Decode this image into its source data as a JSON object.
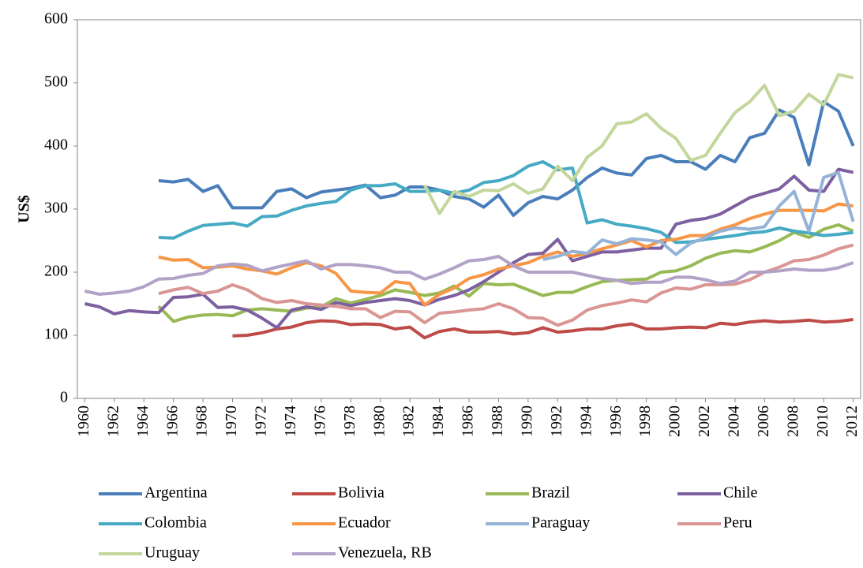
{
  "chart_data": {
    "type": "line",
    "ylabel": "US$",
    "x": [
      1960,
      1961,
      1962,
      1963,
      1964,
      1965,
      1966,
      1967,
      1968,
      1969,
      1970,
      1971,
      1972,
      1973,
      1974,
      1975,
      1976,
      1977,
      1978,
      1979,
      1980,
      1981,
      1982,
      1983,
      1984,
      1985,
      1986,
      1987,
      1988,
      1989,
      1990,
      1991,
      1992,
      1993,
      1994,
      1995,
      1996,
      1997,
      1998,
      1999,
      2000,
      2001,
      2002,
      2003,
      2004,
      2005,
      2006,
      2007,
      2008,
      2009,
      2010,
      2011,
      2012
    ],
    "xlim": [
      1959.5,
      2012.5
    ],
    "xticks": [
      1960,
      1962,
      1964,
      1966,
      1968,
      1970,
      1972,
      1974,
      1976,
      1978,
      1980,
      1982,
      1984,
      1986,
      1988,
      1990,
      1992,
      1994,
      1996,
      1998,
      2000,
      2002,
      2004,
      2006,
      2008,
      2010,
      2012
    ],
    "ylim": [
      0,
      600
    ],
    "yticks": [
      0,
      100,
      200,
      300,
      400,
      500,
      600
    ],
    "grid": false,
    "legend": "bottom",
    "series": [
      {
        "name": "Argentina",
        "color": "#4a7ebb",
        "values": [
          null,
          null,
          null,
          null,
          null,
          345,
          343,
          347,
          328,
          337,
          302,
          302,
          302,
          328,
          332,
          318,
          327,
          330,
          333,
          338,
          318,
          322,
          335,
          335,
          330,
          320,
          316,
          303,
          322,
          290,
          310,
          320,
          316,
          330,
          350,
          365,
          357,
          354,
          380,
          385,
          375,
          375,
          363,
          385,
          375,
          413,
          420,
          457,
          445,
          370,
          470,
          455,
          400
        ]
      },
      {
        "name": "Bolivia",
        "color": "#be4b48",
        "values": [
          null,
          null,
          null,
          null,
          null,
          null,
          null,
          null,
          null,
          null,
          99,
          100,
          104,
          110,
          113,
          120,
          123,
          122,
          117,
          118,
          117,
          110,
          113,
          96,
          106,
          110,
          105,
          105,
          106,
          102,
          104,
          112,
          105,
          107,
          110,
          110,
          115,
          118,
          110,
          110,
          112,
          113,
          112,
          119,
          117,
          121,
          123,
          121,
          122,
          124,
          121,
          122,
          125
        ]
      },
      {
        "name": "Brazil",
        "color": "#98b954",
        "values": [
          null,
          null,
          null,
          null,
          null,
          146,
          122,
          129,
          132,
          133,
          131,
          140,
          142,
          140,
          138,
          143,
          145,
          158,
          151,
          157,
          163,
          172,
          168,
          163,
          167,
          178,
          162,
          182,
          180,
          181,
          172,
          163,
          168,
          168,
          177,
          185,
          187,
          188,
          189,
          200,
          202,
          210,
          222,
          230,
          234,
          232,
          240,
          250,
          263,
          255,
          268,
          275,
          265
        ]
      },
      {
        "name": "Chile",
        "color": "#7d60a0",
        "values": [
          150,
          145,
          134,
          139,
          137,
          136,
          160,
          161,
          165,
          144,
          145,
          140,
          127,
          112,
          140,
          145,
          141,
          152,
          147,
          152,
          155,
          158,
          155,
          148,
          157,
          163,
          172,
          185,
          200,
          215,
          228,
          230,
          252,
          218,
          225,
          232,
          232,
          235,
          238,
          238,
          276,
          282,
          285,
          292,
          305,
          318,
          325,
          332,
          352,
          330,
          328,
          363,
          358
        ]
      },
      {
        "name": "Colombia",
        "color": "#46aac5",
        "values": [
          null,
          null,
          null,
          null,
          null,
          255,
          254,
          265,
          274,
          276,
          278,
          273,
          288,
          289,
          298,
          305,
          309,
          312,
          330,
          337,
          337,
          340,
          328,
          328,
          330,
          325,
          330,
          342,
          345,
          353,
          368,
          375,
          362,
          365,
          278,
          283,
          276,
          273,
          269,
          263,
          247,
          248,
          252,
          255,
          258,
          262,
          264,
          270,
          265,
          262,
          258,
          260,
          263
        ]
      },
      {
        "name": "Ecuador",
        "color": "#f79646",
        "values": [
          null,
          null,
          null,
          null,
          null,
          224,
          219,
          220,
          207,
          208,
          210,
          205,
          202,
          197,
          207,
          215,
          210,
          198,
          170,
          168,
          167,
          185,
          182,
          148,
          165,
          175,
          190,
          196,
          205,
          210,
          215,
          225,
          232,
          225,
          230,
          237,
          243,
          250,
          240,
          250,
          252,
          258,
          258,
          268,
          275,
          285,
          292,
          298,
          298,
          298,
          297,
          308,
          305
        ]
      },
      {
        "name": "Paraguay",
        "color": "#95b3d7",
        "values": [
          null,
          null,
          null,
          null,
          null,
          null,
          null,
          null,
          null,
          null,
          null,
          null,
          null,
          null,
          null,
          null,
          null,
          null,
          null,
          null,
          null,
          null,
          null,
          null,
          null,
          null,
          null,
          null,
          null,
          null,
          null,
          220,
          225,
          233,
          230,
          251,
          245,
          253,
          251,
          248,
          228,
          246,
          255,
          265,
          270,
          268,
          272,
          305,
          328,
          265,
          350,
          358,
          280
        ]
      },
      {
        "name": "Peru",
        "color": "#d99694",
        "values": [
          null,
          null,
          null,
          null,
          null,
          166,
          172,
          176,
          166,
          170,
          180,
          172,
          158,
          152,
          155,
          150,
          148,
          146,
          142,
          142,
          128,
          138,
          137,
          120,
          135,
          137,
          140,
          142,
          150,
          142,
          128,
          127,
          116,
          124,
          140,
          147,
          151,
          156,
          153,
          167,
          175,
          173,
          180,
          180,
          181,
          188,
          200,
          208,
          218,
          220,
          227,
          237,
          243
        ]
      },
      {
        "name": "Uruguay",
        "color": "#c3d69b",
        "values": [
          null,
          null,
          null,
          null,
          null,
          null,
          null,
          null,
          null,
          null,
          null,
          null,
          null,
          null,
          null,
          null,
          null,
          null,
          null,
          null,
          null,
          null,
          null,
          338,
          293,
          328,
          320,
          330,
          329,
          340,
          325,
          332,
          368,
          345,
          382,
          400,
          435,
          438,
          451,
          428,
          412,
          377,
          385,
          420,
          453,
          470,
          496,
          448,
          455,
          482,
          465,
          513,
          508
        ]
      },
      {
        "name": "Venezuela, RB",
        "color": "#b3a2c7",
        "values": [
          170,
          165,
          167,
          170,
          177,
          189,
          190,
          195,
          198,
          210,
          213,
          211,
          202,
          208,
          213,
          218,
          205,
          212,
          212,
          210,
          207,
          200,
          200,
          189,
          197,
          207,
          218,
          220,
          225,
          210,
          200,
          200,
          200,
          200,
          195,
          190,
          187,
          182,
          184,
          184,
          192,
          192,
          188,
          182,
          186,
          200,
          200,
          202,
          205,
          203,
          203,
          207,
          215
        ]
      }
    ]
  }
}
